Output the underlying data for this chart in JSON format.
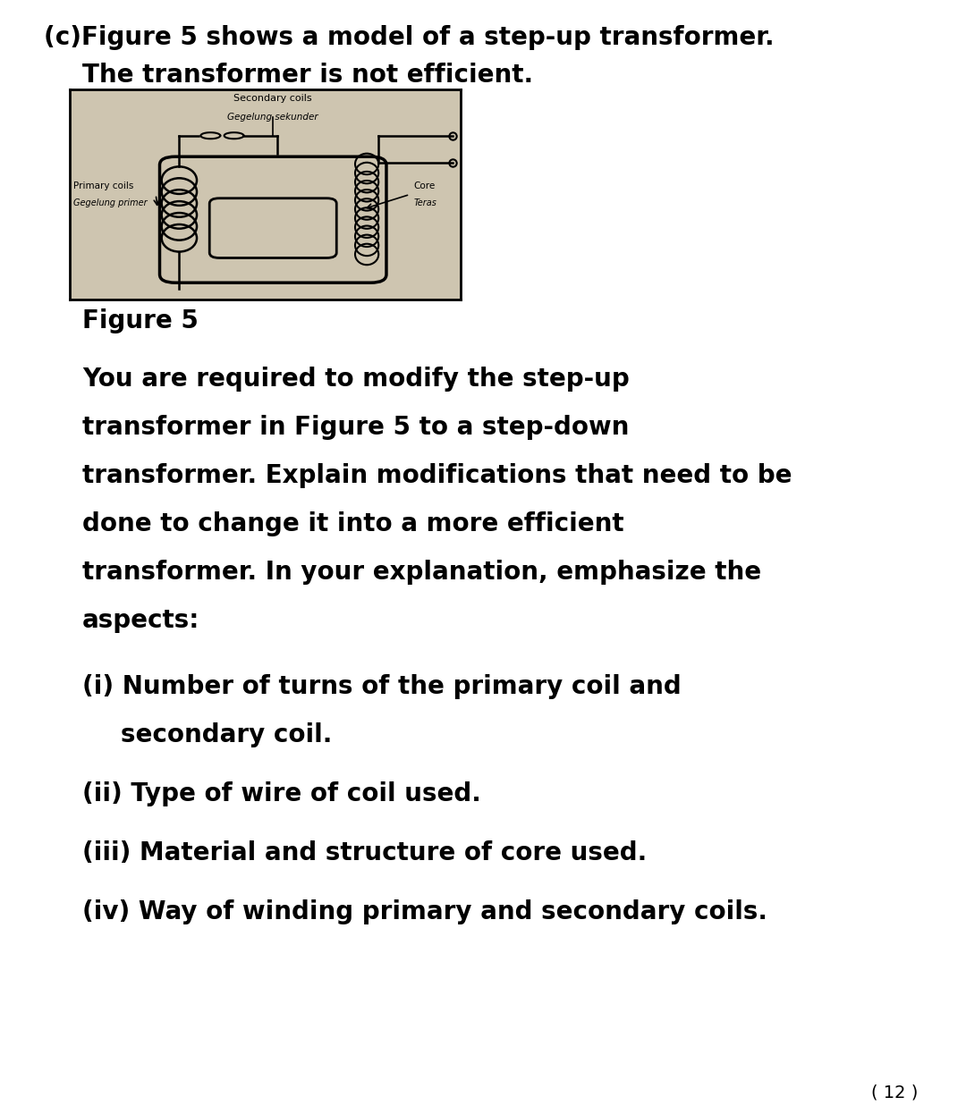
{
  "background_color": "#ffffff",
  "title_line1": "(c)Figure 5 shows a model of a step-up transformer.",
  "title_line2": "    The transformer is not efficient.",
  "figure_label": "Figure 5",
  "para_lines": [
    "You are required to modify the step-up",
    "transformer in Figure 5 to a step-down",
    "transformer. Explain modifications that need to be",
    "done to change it into a more efficient",
    "transformer. In your explanation, emphasize the",
    "aspects:"
  ],
  "item_lines": [
    [
      "(i) Number of turns of the primary coil and",
      "secondary coil."
    ],
    [
      "(ii) Type of wire of coil used."
    ],
    [
      "(iii) Material and structure of core used."
    ],
    [
      "(iv) Way of winding primary and secondary coils."
    ]
  ],
  "score": "( 12 )",
  "fs_title": 20,
  "fs_body": 20,
  "fs_score": 14,
  "img_bg_color": "#cec5b0",
  "img_border_color": "#000000",
  "text_color": "#000000"
}
